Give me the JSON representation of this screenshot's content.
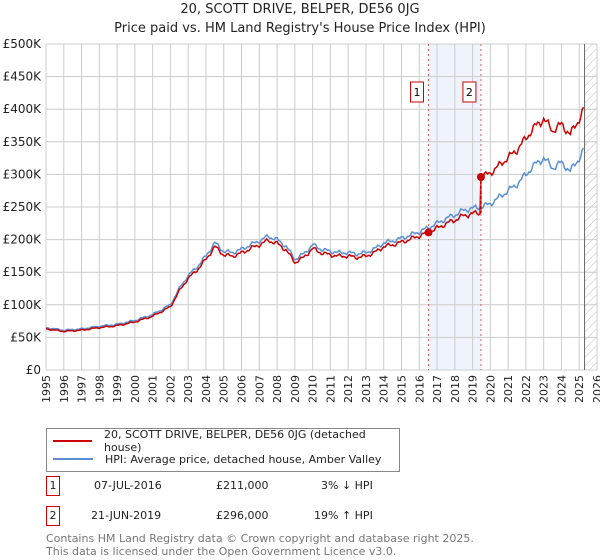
{
  "chart_data": {
    "type": "line",
    "title": "20, SCOTT DRIVE, BELPER, DE56 0JG",
    "subtitle": "Price paid vs. HM Land Registry's House Price Index (HPI)",
    "xlim": [
      1995,
      2026
    ],
    "ylim": [
      0,
      500000
    ],
    "yticks": [
      0,
      50000,
      100000,
      150000,
      200000,
      250000,
      300000,
      350000,
      400000,
      450000,
      500000
    ],
    "ytick_labels": [
      "£0",
      "£50K",
      "£100K",
      "£150K",
      "£200K",
      "£250K",
      "£300K",
      "£350K",
      "£400K",
      "£450K",
      "£500K"
    ],
    "xticks": [
      1995,
      1996,
      1997,
      1998,
      1999,
      2000,
      2001,
      2002,
      2003,
      2004,
      2005,
      2006,
      2007,
      2008,
      2009,
      2010,
      2011,
      2012,
      2013,
      2014,
      2015,
      2016,
      2017,
      2018,
      2019,
      2020,
      2021,
      2022,
      2023,
      2024,
      2025,
      2026
    ],
    "grid": true,
    "hatch_from": 2025.3,
    "highlight_range": [
      2016.52,
      2019.47
    ],
    "series": [
      {
        "name": "HPI: Average price, detached house, Amber Valley",
        "color": "#5b8fd4",
        "x": [
          1995,
          1996,
          1997,
          1998,
          1999,
          2000,
          2001,
          2002,
          2002.5,
          2003,
          2003.5,
          2004,
          2004.5,
          2005,
          2005.5,
          2006,
          2006.5,
          2007,
          2007.5,
          2008,
          2008.5,
          2009,
          2009.5,
          2010,
          2010.5,
          2011,
          2011.5,
          2012,
          2012.5,
          2013,
          2013.5,
          2014,
          2014.5,
          2015,
          2015.5,
          2016,
          2016.5,
          2017,
          2017.5,
          2018,
          2018.5,
          2019,
          2019.5,
          2020,
          2020.5,
          2021,
          2021.5,
          2022,
          2022.5,
          2023,
          2023.5,
          2024,
          2024.5,
          2025,
          2025.3
        ],
        "y": [
          65000,
          61000,
          63000,
          67000,
          70000,
          76000,
          85000,
          100000,
          125000,
          145000,
          158000,
          175000,
          195000,
          182000,
          180000,
          185000,
          192000,
          198000,
          205000,
          200000,
          190000,
          170000,
          178000,
          192000,
          185000,
          182000,
          180000,
          180000,
          178000,
          180000,
          186000,
          195000,
          198000,
          202000,
          207000,
          212000,
          218000,
          225000,
          232000,
          238000,
          245000,
          248000,
          250000,
          255000,
          265000,
          275000,
          285000,
          300000,
          315000,
          325000,
          310000,
          318000,
          305000,
          325000,
          340000
        ]
      },
      {
        "name": "20, SCOTT DRIVE, BELPER, DE56 0JG (detached house)",
        "color": "#cc0000",
        "derived": "indexed from HPI via sales"
      }
    ],
    "sales": [
      {
        "id": "1",
        "date": "07-JUL-2016",
        "x": 2016.52,
        "price": 211000,
        "price_label": "£211,000",
        "hpi": "3% ↓ HPI"
      },
      {
        "id": "2",
        "date": "21-JUN-2019",
        "x": 2019.47,
        "price": 296000,
        "price_label": "£296,000",
        "hpi": "19% ↑ HPI"
      }
    ]
  },
  "legend": {
    "red": "20, SCOTT DRIVE, BELPER, DE56 0JG (detached house)",
    "blue": "HPI: Average price, detached house, Amber Valley"
  },
  "footer": {
    "line1": "Contains HM Land Registry data © Crown copyright and database right 2025.",
    "line2": "This data is licensed under the Open Government Licence v3.0."
  }
}
